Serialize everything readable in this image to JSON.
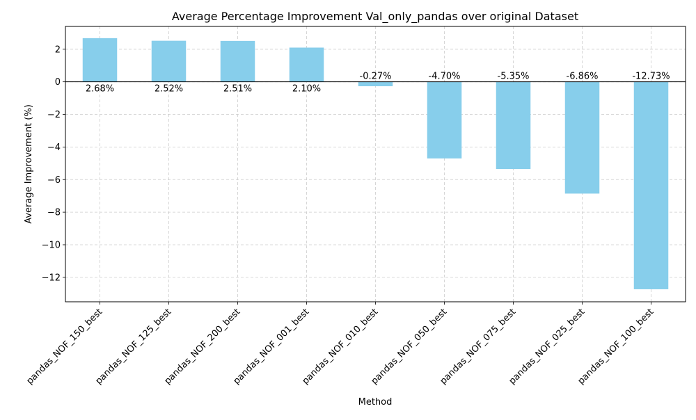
{
  "chart_data": {
    "type": "bar",
    "title": "Average Percentage Improvement Val_only_pandas over original Dataset",
    "xlabel": "Method",
    "ylabel": "Average Improvement (%)",
    "categories": [
      "pandas_NOF_150_best",
      "pandas_NOF_125_best",
      "pandas_NOF_200_best",
      "pandas_NOF_001_best",
      "pandas_NOF_010_best",
      "pandas_NOF_050_best",
      "pandas_NOF_075_best",
      "pandas_NOF_025_best",
      "pandas_NOF_100_best"
    ],
    "values": [
      2.68,
      2.52,
      2.51,
      2.1,
      -0.27,
      -4.7,
      -5.35,
      -6.86,
      -12.73
    ],
    "value_labels": [
      "2.68%",
      "2.52%",
      "2.51%",
      "2.10%",
      "-0.27%",
      "-4.70%",
      "-5.35%",
      "-6.86%",
      "-12.73%"
    ],
    "ylim": [
      -13.5,
      3.4
    ],
    "yticks": [
      2,
      0,
      -2,
      -4,
      -6,
      -8,
      -10,
      -12
    ],
    "grid": true,
    "bar_color": "#87ceeb",
    "zero_line_color": "#000000"
  }
}
